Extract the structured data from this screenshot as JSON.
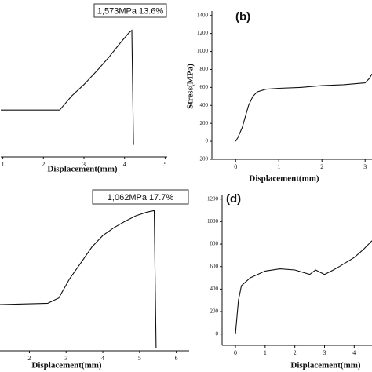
{
  "chart_data": [
    {
      "type": "line",
      "annotation": "1,573MPa  13.6%",
      "xlabel": "Displacement(mm)",
      "x": [
        0.95,
        2.4,
        2.7,
        3.0,
        3.3,
        3.6,
        3.9,
        4.1,
        4.18,
        4.22
      ],
      "values": [
        583,
        583,
        760,
        900,
        1060,
        1230,
        1420,
        1540,
        1573,
        150
      ],
      "color": "#111111",
      "xlim": [
        0.95,
        5.05
      ],
      "ylim": [
        0,
        1950
      ],
      "xticks": [
        1,
        2,
        3,
        4,
        5
      ]
    },
    {
      "type": "line",
      "label": "(b)",
      "xlabel": "Displacement(mm)",
      "ylabel": "Stress(MPa)",
      "x": [
        0.0,
        0.05,
        0.15,
        0.3,
        0.4,
        0.5,
        0.7,
        1.0,
        1.5,
        2.0,
        2.5,
        3.0,
        3.1,
        3.16
      ],
      "values": [
        0,
        40,
        150,
        400,
        500,
        550,
        580,
        590,
        600,
        620,
        630,
        650,
        700,
        750
      ],
      "color": "#111111",
      "xlim": [
        -0.55,
        3.16
      ],
      "ylim": [
        -200,
        1450
      ],
      "xticks": [
        0,
        1,
        2,
        3
      ],
      "yticks": [
        -200,
        0,
        200,
        400,
        600,
        800,
        1000,
        1200,
        1400
      ]
    },
    {
      "type": "line",
      "annotation": "1,062MPa  17.7%",
      "xlabel": "Displacement(mm)",
      "x": [
        1.2,
        2.5,
        2.8,
        3.1,
        3.4,
        3.7,
        4.0,
        4.3,
        4.6,
        4.9,
        5.2,
        5.4,
        5.45
      ],
      "values": [
        350,
        360,
        400,
        547,
        665,
        785,
        873,
        932,
        980,
        1022,
        1050,
        1062,
        20
      ],
      "color": "#111111",
      "xlim": [
        1.2,
        6.35
      ],
      "ylim": [
        0,
        1230
      ],
      "xticks": [
        2,
        3,
        4,
        5,
        6
      ]
    },
    {
      "type": "line",
      "label": "(d)",
      "xlabel": "Displacement(mm)",
      "x": [
        0.0,
        0.1,
        0.2,
        0.5,
        1.0,
        1.5,
        2.0,
        2.5,
        2.7,
        3.0,
        3.3,
        3.5,
        4.0,
        4.3,
        4.6
      ],
      "values": [
        0,
        300,
        430,
        500,
        560,
        580,
        570,
        530,
        570,
        530,
        570,
        600,
        680,
        750,
        830
      ],
      "color": "#111111",
      "xlim": [
        -0.45,
        4.6
      ],
      "ylim": [
        -100,
        1240
      ],
      "xticks": [
        0,
        1,
        2,
        3,
        4
      ],
      "yticks": [
        0,
        200,
        400,
        600,
        800,
        1000,
        1200
      ]
    }
  ]
}
